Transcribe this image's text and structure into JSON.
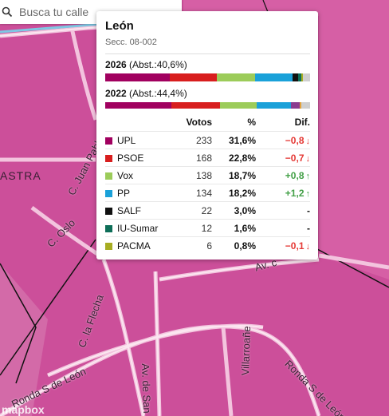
{
  "search": {
    "placeholder": "Busca tu calle"
  },
  "map": {
    "attribution": "mapbox",
    "place_labels": [
      "ASTRA"
    ],
    "street_labels": [
      "C. Juan Pablo II",
      "C. Oslo",
      "C. la Flecha",
      "Av. de San",
      "Villarroañe",
      "Ronda S de León",
      "Ronda S de León",
      "Av. c"
    ]
  },
  "popup": {
    "title": "León",
    "section": "Secc. 08-002",
    "results": [
      {
        "year": "2026",
        "abst": "(Abst.:40,6%)"
      },
      {
        "year": "2022",
        "abst": "(Abst.:44,4%)"
      }
    ],
    "table": {
      "headers": [
        "Votos",
        "%",
        "Dif."
      ],
      "rows": [
        {
          "party": "UPL",
          "color": "#a1005f",
          "votes": "233",
          "pct": "31,6%",
          "diff": "−0,8",
          "trend": "down"
        },
        {
          "party": "PSOE",
          "color": "#d81e1e",
          "votes": "168",
          "pct": "22,8%",
          "diff": "−0,7",
          "trend": "down"
        },
        {
          "party": "Vox",
          "color": "#9ccc5a",
          "votes": "138",
          "pct": "18,7%",
          "diff": "+0,8",
          "trend": "up"
        },
        {
          "party": "PP",
          "color": "#1aa1d9",
          "votes": "134",
          "pct": "18,2%",
          "diff": "+1,2",
          "trend": "up"
        },
        {
          "party": "SALF",
          "color": "#111111",
          "votes": "22",
          "pct": "3,0%",
          "diff": "-",
          "trend": "none"
        },
        {
          "party": "IU-Sumar",
          "color": "#0e6e58",
          "votes": "12",
          "pct": "1,6%",
          "diff": "-",
          "trend": "none"
        },
        {
          "party": "PACMA",
          "color": "#a7ad22",
          "votes": "6",
          "pct": "0,8%",
          "diff": "−0,1",
          "trend": "down"
        }
      ]
    },
    "bar_2026": [
      {
        "party": "UPL",
        "share": 31.6,
        "color": "#a1005f"
      },
      {
        "party": "PSOE",
        "share": 22.8,
        "color": "#d81e1e"
      },
      {
        "party": "Vox",
        "share": 18.7,
        "color": "#9ccc5a"
      },
      {
        "party": "PP",
        "share": 18.2,
        "color": "#1aa1d9"
      },
      {
        "party": "SALF",
        "share": 3.0,
        "color": "#111111"
      },
      {
        "party": "IU-Sumar",
        "share": 1.6,
        "color": "#0e6e58"
      },
      {
        "party": "PACMA",
        "share": 0.8,
        "color": "#a7ad22"
      },
      {
        "party": "otros",
        "share": 3.3,
        "color": "#cfcfcf"
      }
    ],
    "bar_2022": [
      {
        "party": "UPL",
        "share": 32.4,
        "color": "#a1005f"
      },
      {
        "party": "PSOE",
        "share": 23.5,
        "color": "#d81e1e"
      },
      {
        "party": "Vox",
        "share": 17.9,
        "color": "#9ccc5a"
      },
      {
        "party": "PP",
        "share": 17.0,
        "color": "#1aa1d9"
      },
      {
        "party": "Otros",
        "share": 4.0,
        "color": "#8a3d8f"
      },
      {
        "party": "PACMA",
        "share": 0.9,
        "color": "#e3a33a"
      },
      {
        "party": "otros2",
        "share": 4.3,
        "color": "#cfcfcf"
      }
    ]
  }
}
